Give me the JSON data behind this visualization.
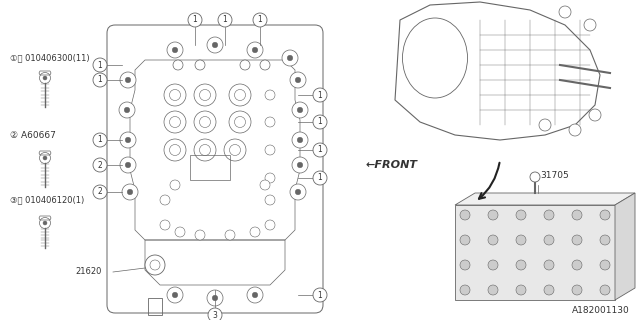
{
  "bg_color": "#ffffff",
  "line_color": "#666666",
  "text_color": "#333333",
  "diagram_number": "A182001130",
  "part1_label": "①Ⓑ 010406300(11)",
  "part2_label": "② A60667",
  "part3_label": "③Ⓑ 010406120(1)",
  "front_text": "←FRONT",
  "part_21620": "21620",
  "part_31705": "31705"
}
